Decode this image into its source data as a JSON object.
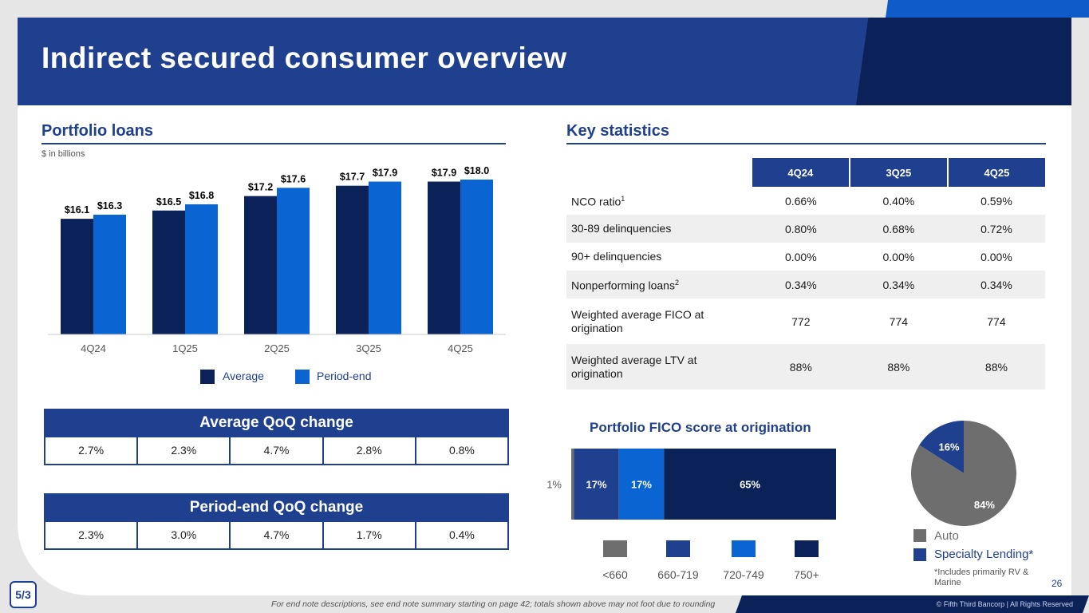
{
  "title": "Indirect secured consumer overview",
  "portfolio_section": {
    "title": "Portfolio loans",
    "units": "$ in billions",
    "legend": [
      {
        "label": "Average",
        "color": "#0b2259"
      },
      {
        "label": "Period-end",
        "color": "#0a64d2"
      }
    ]
  },
  "chart_data": [
    {
      "type": "bar",
      "title": "Portfolio loans",
      "ylabel": "$ in billions",
      "categories": [
        "4Q24",
        "1Q25",
        "2Q25",
        "3Q25",
        "4Q25"
      ],
      "series": [
        {
          "name": "Average",
          "values": [
            16.1,
            16.5,
            17.2,
            17.7,
            17.9
          ],
          "labels": [
            "$16.1",
            "$16.5",
            "$17.2",
            "$17.7",
            "$17.9"
          ],
          "color": "#0b2259"
        },
        {
          "name": "Period-end",
          "values": [
            16.3,
            16.8,
            17.6,
            17.9,
            18.0
          ],
          "labels": [
            "$16.3",
            "$16.8",
            "$17.6",
            "$17.9",
            "$18.0"
          ],
          "color": "#0a64d2"
        }
      ],
      "ylim": [
        10.5,
        18.5
      ]
    },
    {
      "type": "bar",
      "title": "Portfolio FICO score at origination",
      "orientation": "horizontal-stacked",
      "categories": [
        "<660",
        "660-719",
        "720-749",
        "750+"
      ],
      "values": [
        1,
        17,
        17,
        65
      ],
      "labels": [
        "1%",
        "17%",
        "17%",
        "65%"
      ],
      "colors": [
        "#6e6e6e",
        "#1f3f8f",
        "#0a64d2",
        "#0b2259"
      ]
    },
    {
      "type": "pie",
      "categories": [
        "Auto",
        "Specialty Lending*"
      ],
      "values": [
        84,
        16
      ],
      "labels": [
        "84%",
        "16%"
      ],
      "colors": [
        "#6e6e6e",
        "#1f3f8f"
      ],
      "footnote": "*Includes primarily RV & Marine"
    }
  ],
  "average_qoq": {
    "title": "Average QoQ change",
    "values": [
      "2.7%",
      "2.3%",
      "4.7%",
      "2.8%",
      "0.8%"
    ]
  },
  "periodend_qoq": {
    "title": "Period-end QoQ change",
    "values": [
      "2.3%",
      "3.0%",
      "4.7%",
      "1.7%",
      "0.4%"
    ]
  },
  "key_statistics": {
    "title": "Key statistics",
    "columns": [
      "4Q24",
      "3Q25",
      "4Q25"
    ],
    "rows": [
      {
        "label": "NCO ratio",
        "sup": "1",
        "values": [
          "0.66%",
          "0.40%",
          "0.59%"
        ]
      },
      {
        "label": "30-89 delinquencies",
        "sup": "",
        "values": [
          "0.80%",
          "0.68%",
          "0.72%"
        ]
      },
      {
        "label": "90+ delinquencies",
        "sup": "",
        "values": [
          "0.00%",
          "0.00%",
          "0.00%"
        ]
      },
      {
        "label": "Nonperforming loans",
        "sup": "2",
        "values": [
          "0.34%",
          "0.34%",
          "0.34%"
        ]
      },
      {
        "label": "Weighted average FICO at origination",
        "sup": "",
        "values": [
          "772",
          "774",
          "774"
        ]
      },
      {
        "label": "Weighted average LTV at origination",
        "sup": "",
        "values": [
          "88%",
          "88%",
          "88%"
        ]
      }
    ]
  },
  "fico_title": "Portfolio FICO score at origination",
  "page_number": "26",
  "footnote": "For end note descriptions, see end note summary starting on page 42; totals shown above may not foot due to rounding",
  "copyright": "© Fifth Third Bancorp | All Rights Reserved",
  "logo_text": "5/3"
}
